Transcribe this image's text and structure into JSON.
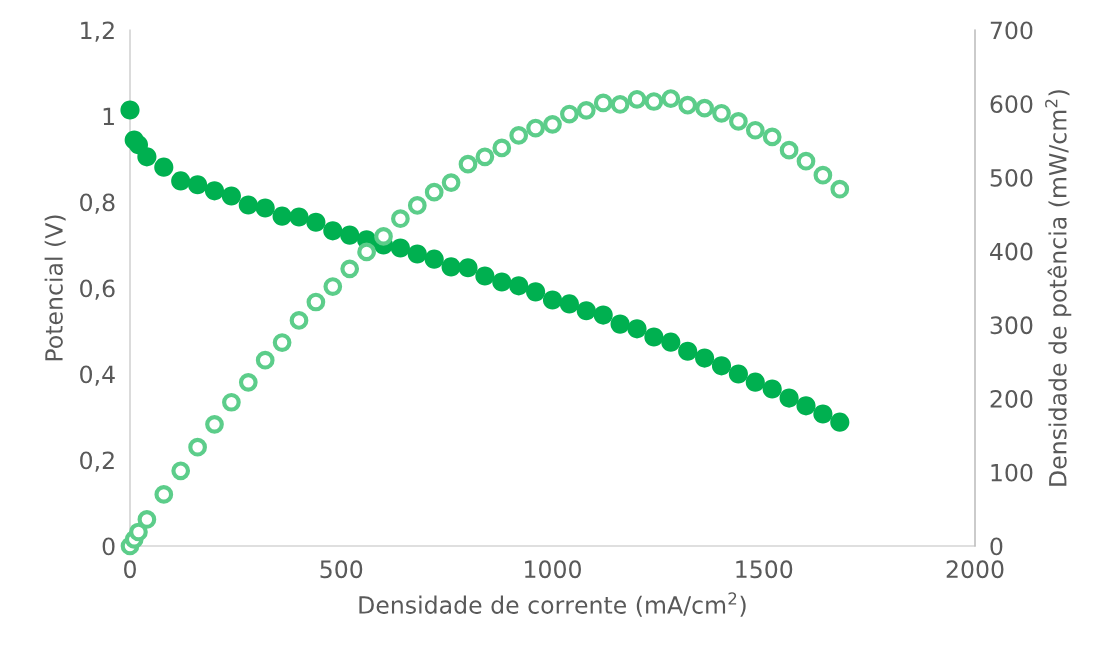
{
  "chart_data": {
    "type": "scatter",
    "xlabel": "Densidade de corrente (mA/cm$^{2}$)",
    "ylabel": "Potencial (V)",
    "y2label": "Densidade de potência (mW/cm$^{2}$)",
    "x": [
      0,
      10,
      20,
      40,
      80,
      120,
      160,
      200,
      240,
      280,
      320,
      360,
      400,
      440,
      480,
      520,
      560,
      600,
      640,
      680,
      720,
      760,
      800,
      840,
      880,
      920,
      960,
      1000,
      1040,
      1080,
      1120,
      1160,
      1200,
      1240,
      1280,
      1320,
      1360,
      1400,
      1440,
      1480,
      1520,
      1560,
      1600,
      1640,
      1680
    ],
    "series": [
      {
        "color": "#00b050",
        "marker": "circle",
        "values": [
          1.014,
          0.944,
          0.933,
          0.905,
          0.881,
          0.849,
          0.84,
          0.826,
          0.814,
          0.793,
          0.786,
          0.767,
          0.765,
          0.753,
          0.733,
          0.723,
          0.712,
          0.7,
          0.693,
          0.679,
          0.667,
          0.649,
          0.647,
          0.628,
          0.614,
          0.605,
          0.591,
          0.572,
          0.563,
          0.547,
          0.537,
          0.516,
          0.505,
          0.486,
          0.474,
          0.453,
          0.437,
          0.419,
          0.4,
          0.381,
          0.365,
          0.344,
          0.326,
          0.307,
          0.288
        ]
      },
      {
        "color": "#5ccd8a",
        "marker": "circle",
        "axis": "y2",
        "values": [
          0,
          9,
          19,
          36,
          70,
          102,
          134,
          165,
          195,
          222,
          252,
          276,
          306,
          331,
          352,
          376,
          399,
          420,
          444,
          462,
          480,
          493,
          518,
          528,
          540,
          557,
          567,
          572,
          586,
          591,
          601,
          599,
          606,
          603,
          607,
          598,
          594,
          587,
          576,
          564,
          555,
          537,
          522,
          503,
          484
        ]
      }
    ],
    "xlim": [
      0,
      2000
    ],
    "xticks": [
      0,
      500,
      1000,
      1500,
      2000
    ],
    "ylim": [
      0,
      1.2
    ],
    "yticks": [
      0,
      {
        "value": 0.2,
        "label": "0,2"
      },
      {
        "value": 0.4,
        "label": "0,4"
      },
      {
        "value": 0.6,
        "label": "0,6"
      },
      {
        "value": 0.8,
        "label": "0,8"
      },
      1,
      {
        "value": 1.2,
        "label": "1,2"
      }
    ],
    "y2lim": [
      0,
      700
    ],
    "y2ticks": [
      0,
      100,
      200,
      300,
      400,
      500,
      600,
      700
    ],
    "grid": false,
    "legend": false
  }
}
